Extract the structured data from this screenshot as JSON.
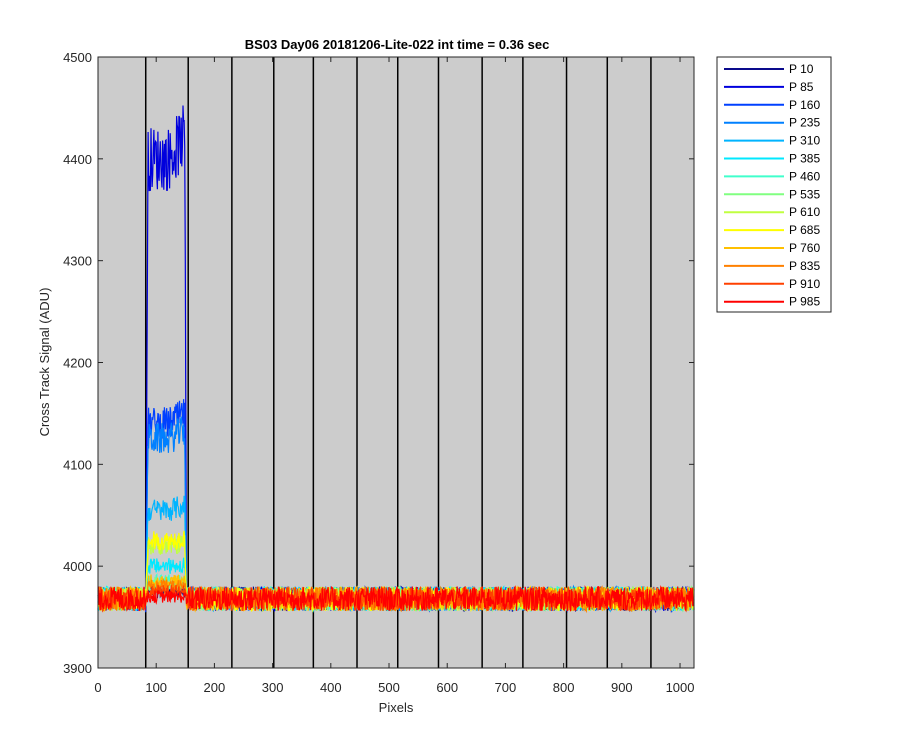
{
  "chart_data": {
    "type": "line",
    "title": "BS03 Day06 20181206-Lite-022 int time = 0.36 sec",
    "xlabel": "Pixels",
    "ylabel": "Cross Track Signal (ADU)",
    "xlim": [
      0,
      1024
    ],
    "ylim": [
      3900,
      4500
    ],
    "xticks": [
      0,
      100,
      200,
      300,
      400,
      500,
      600,
      700,
      800,
      900,
      1000
    ],
    "yticks": [
      3900,
      4000,
      4100,
      4200,
      4300,
      4400,
      4500
    ],
    "vertical_lines": [
      82,
      155,
      230,
      302,
      370,
      445,
      515,
      585,
      660,
      730,
      805,
      875,
      950
    ],
    "background_color": "#cccccc",
    "grid": false,
    "legend_position": "outside-top-right",
    "baseline": 3968,
    "noise_amplitude": 12,
    "bright_region": [
      82,
      152
    ],
    "series": [
      {
        "name": "P 10",
        "color": "#0a0a8c",
        "peak_level": 3975
      },
      {
        "name": "P 85",
        "color": "#0000dd",
        "peak_level": 4400
      },
      {
        "name": "P 160",
        "color": "#0040ff",
        "peak_level": 4140
      },
      {
        "name": "P 235",
        "color": "#0080ff",
        "peak_level": 4125
      },
      {
        "name": "P 310",
        "color": "#00b4ff",
        "peak_level": 4055
      },
      {
        "name": "P 385",
        "color": "#00e8ff",
        "peak_level": 4000
      },
      {
        "name": "P 460",
        "color": "#40ffcc",
        "peak_level": 3985
      },
      {
        "name": "P 535",
        "color": "#80ff80",
        "peak_level": 3982
      },
      {
        "name": "P 610",
        "color": "#c0ff40",
        "peak_level": 4020
      },
      {
        "name": "P 685",
        "color": "#ffff00",
        "peak_level": 4025
      },
      {
        "name": "P 760",
        "color": "#ffc000",
        "peak_level": 3985
      },
      {
        "name": "P 835",
        "color": "#ff8000",
        "peak_level": 3980
      },
      {
        "name": "P 910",
        "color": "#ff4000",
        "peak_level": 3975
      },
      {
        "name": "P 985",
        "color": "#ff0000",
        "peak_level": 3970
      }
    ]
  }
}
